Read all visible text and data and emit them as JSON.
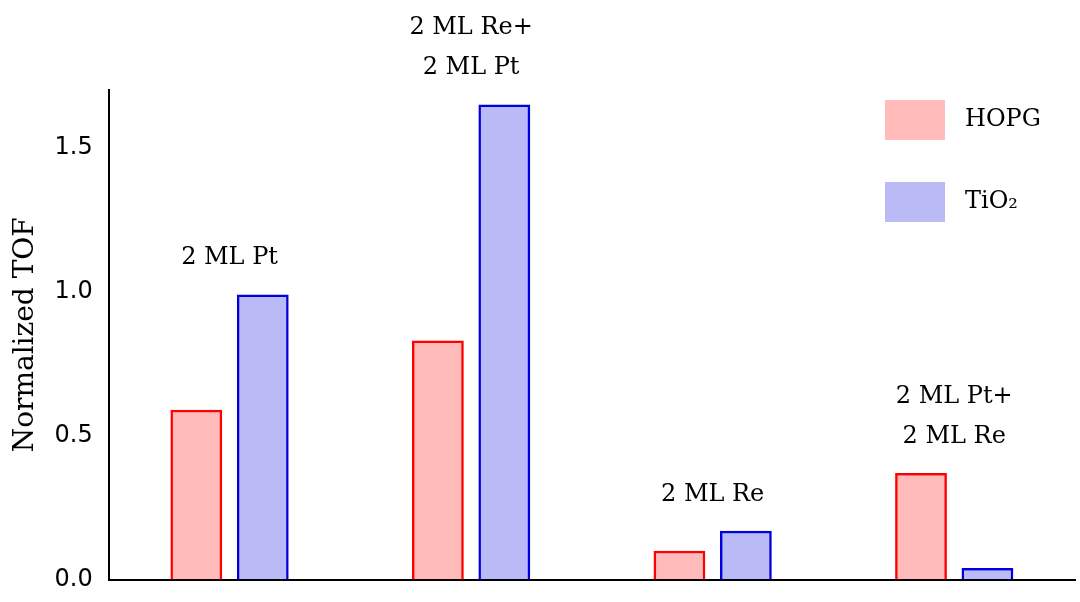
{
  "chart_data": {
    "type": "bar",
    "ylabel": "Normalized TOF",
    "categories": [
      "2 ML Pt",
      "2 ML Re+\n2 ML Pt",
      "2 ML Re",
      "2 ML Pt+\n2 ML Re"
    ],
    "series": [
      {
        "name": "HOPG",
        "color": "#ff0000",
        "values": [
          0.59,
          0.83,
          0.1,
          0.37
        ]
      },
      {
        "name": "TiO₂",
        "color": "#0000dd",
        "values": [
          0.99,
          1.65,
          0.17,
          0.04
        ]
      }
    ],
    "ylim": [
      0,
      1.7
    ],
    "yticks": [
      {
        "value": 0,
        "label": "0.0"
      },
      {
        "value": 0.5,
        "label": "0.5"
      },
      {
        "value": 1,
        "label": "1.0"
      },
      {
        "value": 1.5,
        "label": "1.5"
      }
    ],
    "tick_labels": "y",
    "grid": false,
    "legend": "top right"
  }
}
